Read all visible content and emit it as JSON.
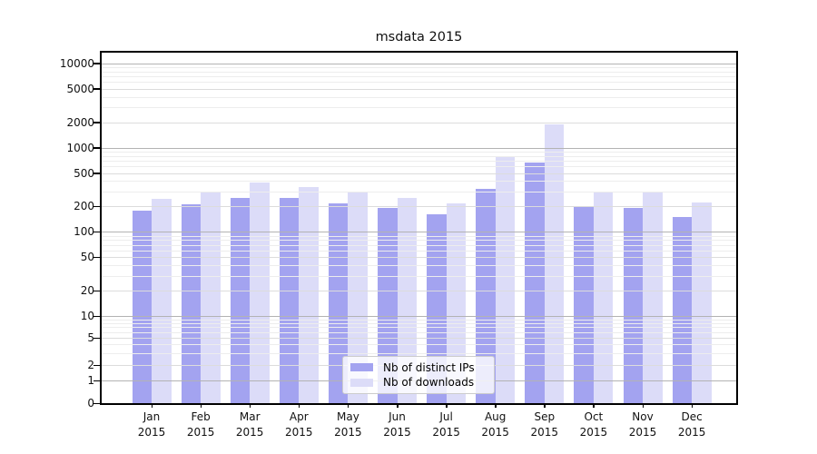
{
  "chart_data": {
    "type": "bar",
    "title": "msdata 2015",
    "categories": [
      "Jan",
      "Feb",
      "Mar",
      "Apr",
      "May",
      "Jun",
      "Jul",
      "Aug",
      "Sep",
      "Oct",
      "Nov",
      "Dec"
    ],
    "year_label": "2015",
    "series": [
      {
        "name": "Nb of distinct IPs",
        "color": "#a3a3f0",
        "values": [
          180,
          210,
          250,
          250,
          215,
          190,
          160,
          325,
          660,
          200,
          190,
          150
        ]
      },
      {
        "name": "Nb of downloads",
        "color": "#dcdcf8",
        "values": [
          245,
          295,
          390,
          340,
          290,
          250,
          220,
          800,
          1900,
          300,
          290,
          225
        ]
      }
    ],
    "y_ticks": [
      0,
      1,
      2,
      5,
      10,
      20,
      50,
      100,
      200,
      500,
      1000,
      2000,
      5000,
      10000
    ],
    "y_scale": "symlog",
    "ylim": [
      0,
      13000
    ],
    "grid": true,
    "legend_position": "lower center",
    "colors": {
      "major_grid": "#b3b3b3",
      "mid_grid": "#dcdcdc",
      "minor_grid": "#ededed",
      "axis": "#000000"
    }
  }
}
